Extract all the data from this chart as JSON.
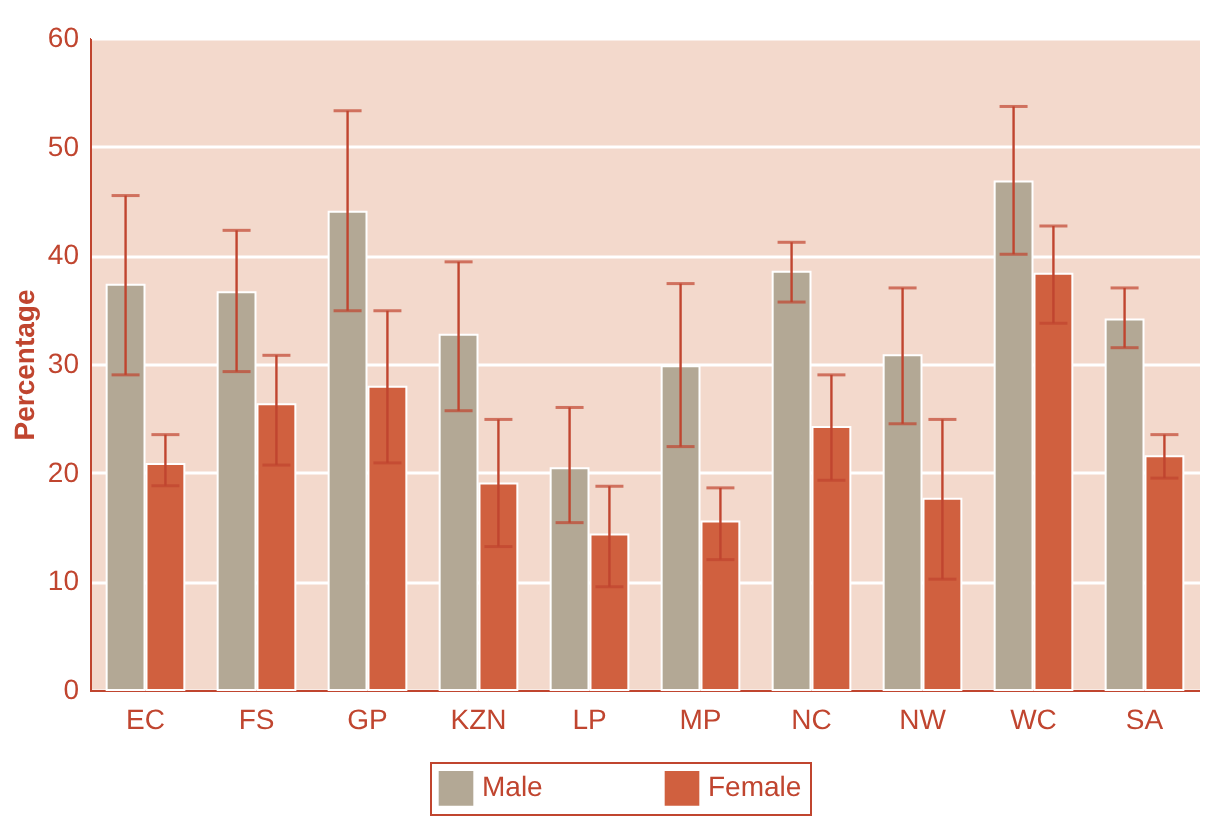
{
  "chart_data": {
    "type": "bar",
    "ylabel": "Percentage",
    "categories": [
      "EC",
      "FS",
      "GP",
      "KZN",
      "LP",
      "MP",
      "NC",
      "NW",
      "WC",
      "SA"
    ],
    "series": [
      {
        "name": "Male",
        "color": "#b3a895",
        "values": [
          37.3,
          36.6,
          44.0,
          32.7,
          20.4,
          29.8,
          38.5,
          30.8,
          46.8,
          34.1
        ],
        "errors": [
          [
            29.0,
            45.5
          ],
          [
            29.3,
            42.3
          ],
          [
            34.9,
            53.3
          ],
          [
            25.7,
            39.4
          ],
          [
            15.4,
            26.0
          ],
          [
            22.4,
            37.4
          ],
          [
            35.7,
            41.2
          ],
          [
            24.5,
            37.0
          ],
          [
            40.1,
            53.7
          ],
          [
            31.5,
            37.0
          ]
        ]
      },
      {
        "name": "Female",
        "color": "#d0603f",
        "values": [
          20.8,
          26.3,
          27.9,
          19.0,
          14.3,
          15.5,
          24.2,
          17.6,
          38.3,
          21.5
        ],
        "errors": [
          [
            18.8,
            23.5
          ],
          [
            20.7,
            30.8
          ],
          [
            20.9,
            34.9
          ],
          [
            13.2,
            24.9
          ],
          [
            9.5,
            18.75
          ],
          [
            12.0,
            18.6
          ],
          [
            19.3,
            29.0
          ],
          [
            10.2,
            24.9
          ],
          [
            33.75,
            42.7
          ],
          [
            19.5,
            23.5
          ]
        ]
      }
    ],
    "ylim": [
      0,
      60
    ],
    "yticks": [
      0,
      10,
      20,
      30,
      40,
      50,
      60
    ],
    "grid": "y",
    "legend": "bottom"
  }
}
